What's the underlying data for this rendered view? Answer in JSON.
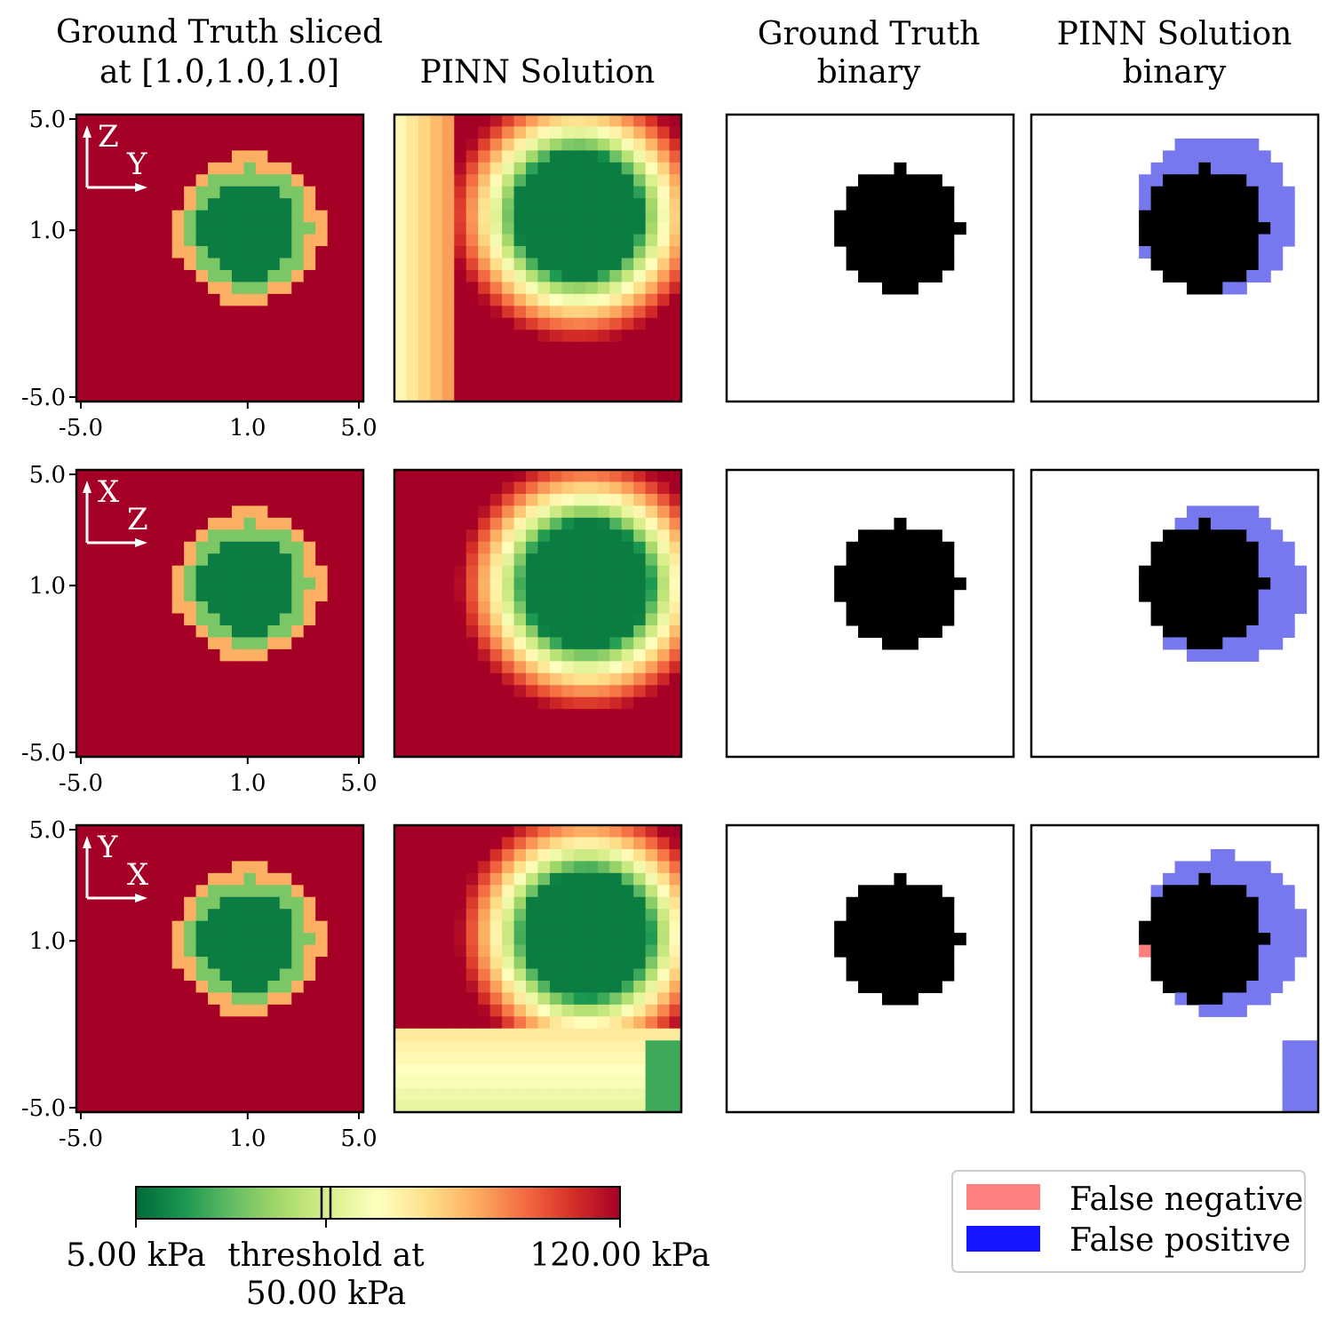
{
  "column_titles": [
    [
      "Ground Truth sliced",
      "at [1.0,1.0,1.0]"
    ],
    [
      "PINN Solution"
    ],
    [
      "Ground Truth",
      "binary"
    ],
    [
      "PINN Solution",
      "binary"
    ]
  ],
  "axis_ticks": {
    "y": [
      "5.0",
      "1.0",
      "-5.0"
    ],
    "x": [
      "-5.0",
      "1.0",
      "5.0"
    ]
  },
  "orientation_labels": [
    {
      "vertical": "Z",
      "horizontal": "Y"
    },
    {
      "vertical": "X",
      "horizontal": "Z"
    },
    {
      "vertical": "Y",
      "horizontal": "X"
    }
  ],
  "colorbar": {
    "min_label": "5.00 kPa",
    "max_label": "120.00 kPa",
    "threshold_label": [
      "threshold at",
      "50.00 kPa"
    ],
    "min_value": 5.0,
    "max_value": 120.0,
    "threshold_value": 50.0,
    "colormap": "RdYlGn_r"
  },
  "legend": [
    {
      "label": "False negative",
      "color": "#ff7f7f"
    },
    {
      "label": "False positive",
      "color": "#1515ff"
    }
  ],
  "chart_data": {
    "type": "heatmap",
    "grid_size": 24,
    "axis_range": [
      -5.0,
      5.0
    ],
    "slice_point": [
      1.0,
      1.0,
      1.0
    ],
    "inclusion_center": [
      1.0,
      1.0
    ],
    "inclusion_radius": 2.6,
    "background_stiffness_kpa": 120.0,
    "inclusion_stiffness_kpa": 10.0,
    "threshold_kpa": 50.0,
    "rows": [
      {
        "slice_plane": "Z-Y",
        "pinn_center": [
          1.4,
          1.5
        ],
        "pinn_artifact": "left-strip"
      },
      {
        "slice_plane": "X-Z",
        "pinn_center": [
          1.7,
          1.0
        ],
        "pinn_artifact": "none"
      },
      {
        "slice_plane": "Y-X",
        "pinn_center": [
          1.7,
          1.2
        ],
        "pinn_artifact": "bottom-region"
      }
    ]
  }
}
